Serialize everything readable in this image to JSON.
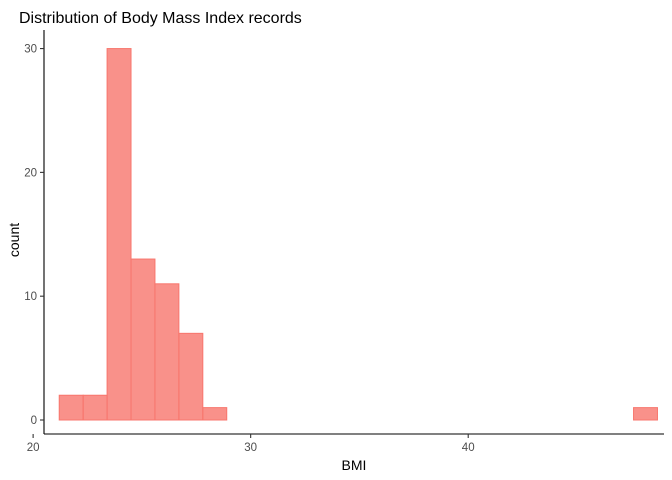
{
  "chart_data": {
    "type": "bar",
    "subtype": "histogram",
    "title": "Distribution of Body Mass Index records",
    "xlabel": "BMI",
    "ylabel": "count",
    "xlim": [
      20.5,
      49.0
    ],
    "ylim": [
      0,
      31.5
    ],
    "xticks": [
      20,
      30,
      40
    ],
    "yticks": [
      0,
      10,
      20,
      30
    ],
    "bin_width": 1.1,
    "bins": [
      {
        "start": 21.2,
        "end": 22.3,
        "count": 2
      },
      {
        "start": 22.3,
        "end": 23.4,
        "count": 2
      },
      {
        "start": 23.4,
        "end": 24.5,
        "count": 30
      },
      {
        "start": 24.5,
        "end": 25.6,
        "count": 13
      },
      {
        "start": 25.6,
        "end": 26.7,
        "count": 11
      },
      {
        "start": 26.7,
        "end": 27.8,
        "count": 7
      },
      {
        "start": 27.8,
        "end": 28.9,
        "count": 1
      },
      {
        "start": 28.9,
        "end": 30.0,
        "count": 0
      },
      {
        "start": 30.0,
        "end": 31.1,
        "count": 0
      },
      {
        "start": 31.1,
        "end": 32.2,
        "count": 0
      },
      {
        "start": 32.2,
        "end": 33.3,
        "count": 0
      },
      {
        "start": 33.3,
        "end": 34.4,
        "count": 0
      },
      {
        "start": 34.4,
        "end": 35.5,
        "count": 0
      },
      {
        "start": 35.5,
        "end": 36.6,
        "count": 0
      },
      {
        "start": 36.6,
        "end": 37.7,
        "count": 0
      },
      {
        "start": 37.7,
        "end": 38.8,
        "count": 0
      },
      {
        "start": 38.8,
        "end": 39.9,
        "count": 0
      },
      {
        "start": 39.9,
        "end": 41.0,
        "count": 0
      },
      {
        "start": 41.0,
        "end": 42.1,
        "count": 0
      },
      {
        "start": 42.1,
        "end": 43.2,
        "count": 0
      },
      {
        "start": 43.2,
        "end": 44.3,
        "count": 0
      },
      {
        "start": 44.3,
        "end": 45.4,
        "count": 0
      },
      {
        "start": 45.4,
        "end": 46.5,
        "count": 0
      },
      {
        "start": 46.5,
        "end": 47.6,
        "count": 0
      },
      {
        "start": 47.6,
        "end": 48.7,
        "count": 1
      }
    ],
    "color": "#f8766d",
    "grid": false,
    "legend": "none"
  }
}
